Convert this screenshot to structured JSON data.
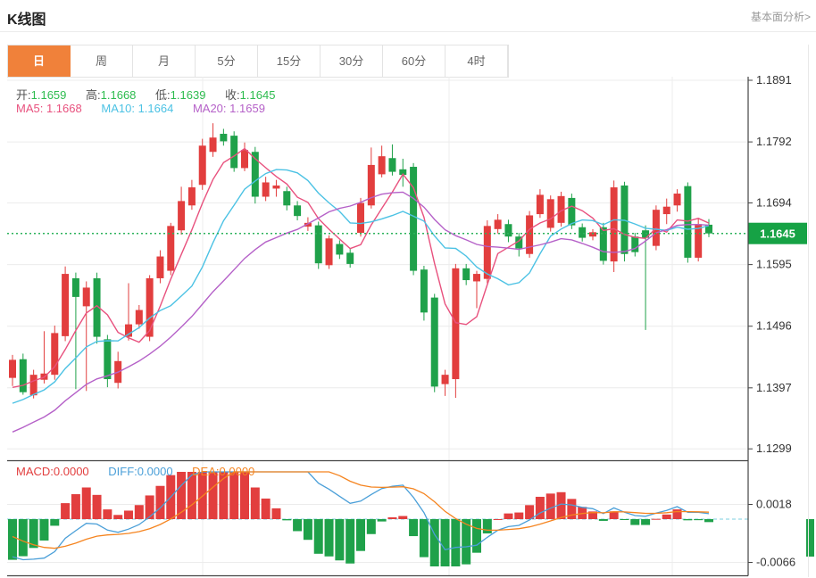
{
  "header": {
    "title": "K线图",
    "link_label": "基本面分析>"
  },
  "tabs": {
    "items": [
      "日",
      "周",
      "月",
      "5分",
      "15分",
      "30分",
      "60分",
      "4时"
    ],
    "selected_index": 0
  },
  "ohlc_legend": {
    "open_label": "开:",
    "open": "1.1659",
    "high_label": "高:",
    "high": "1.1668",
    "low_label": "低:",
    "low": "1.1639",
    "close_label": "收:",
    "close": "1.1645"
  },
  "ma_legend": {
    "ma5_label": "MA5:",
    "ma5": "1.1668",
    "ma10_label": "MA10:",
    "ma10": "1.1664",
    "ma20_label": "MA20:",
    "ma20": "1.1659"
  },
  "macd_legend": {
    "macd_label": "MACD:",
    "macd": "0.0000",
    "diff_label": "DIFF:",
    "diff": "0.0000",
    "dea_label": "DEA:",
    "dea": "0.0000"
  },
  "price_axis": {
    "ticks": [
      "1.1891",
      "1.1792",
      "1.1694",
      "1.1595",
      "1.1496",
      "1.1397",
      "1.1299"
    ],
    "current_price": "1.1645"
  },
  "macd_axis": {
    "ticks": [
      "0.0018",
      "-0.0066"
    ]
  },
  "colors": {
    "up": "#e23e3e",
    "down": "#1fa14a",
    "value_green": "#2ebc4f",
    "label_gray": "#555555",
    "ma5": "#e8517e",
    "ma10": "#4cc2e4",
    "ma20": "#b561c8",
    "macd_label": "#e23e3e",
    "diff": "#4a9fd8",
    "dea": "#f5841f",
    "tab_selected_bg": "#f0813a",
    "price_line": "#2db35c",
    "price_tag_bg": "#16a245",
    "axis_text": "#333333",
    "grid": "#ececec",
    "axis_line": "#444444",
    "zero_dash": "#7ecfe0"
  },
  "chart_data": {
    "type": "candlestick",
    "title": "K线图",
    "period_selected": "日",
    "price_range": [
      1.1299,
      1.1891
    ],
    "y_ticks": [
      1.1891,
      1.1792,
      1.1694,
      1.1595,
      1.1496,
      1.1397,
      1.1299
    ],
    "current_price": 1.1645,
    "overlays": [
      {
        "name": "MA5",
        "window": 5,
        "color": "#e8517e",
        "last_value": 1.1668
      },
      {
        "name": "MA10",
        "window": 10,
        "color": "#4cc2e4",
        "last_value": 1.1664
      },
      {
        "name": "MA20",
        "window": 20,
        "color": "#b561c8",
        "last_value": 1.1659
      }
    ],
    "last_candle": {
      "open": 1.1659,
      "high": 1.1668,
      "low": 1.1639,
      "close": 1.1645
    },
    "candles": [
      [
        1.1413,
        1.145,
        1.14,
        1.1442
      ],
      [
        1.1443,
        1.1452,
        1.1386,
        1.139
      ],
      [
        1.1385,
        1.1426,
        1.138,
        1.1418
      ],
      [
        1.141,
        1.1488,
        1.1404,
        1.142
      ],
      [
        1.1418,
        1.1497,
        1.141,
        1.1485
      ],
      [
        1.148,
        1.1592,
        1.1472,
        1.158
      ],
      [
        1.1573,
        1.1582,
        1.1395,
        1.1543
      ],
      [
        1.1528,
        1.1568,
        1.1392,
        1.1558
      ],
      [
        1.1573,
        1.1582,
        1.1468,
        1.1479
      ],
      [
        1.1475,
        1.1482,
        1.1398,
        1.1411
      ],
      [
        1.1405,
        1.1455,
        1.1396,
        1.144
      ],
      [
        1.1479,
        1.1565,
        1.1473,
        1.1499
      ],
      [
        1.1499,
        1.153,
        1.1492,
        1.1522
      ],
      [
        1.1479,
        1.1578,
        1.1472,
        1.1573
      ],
      [
        1.1573,
        1.1618,
        1.1565,
        1.1608
      ],
      [
        1.1585,
        1.1662,
        1.1578,
        1.1657
      ],
      [
        1.165,
        1.172,
        1.1643,
        1.1697
      ],
      [
        1.169,
        1.1731,
        1.1683,
        1.1719
      ],
      [
        1.1723,
        1.1797,
        1.1715,
        1.1786
      ],
      [
        1.1776,
        1.1822,
        1.1768,
        1.1799
      ],
      [
        1.1805,
        1.1813,
        1.1786,
        1.1793
      ],
      [
        1.1802,
        1.1809,
        1.1744,
        1.175
      ],
      [
        1.175,
        1.1791,
        1.1745,
        1.1779
      ],
      [
        1.1776,
        1.1784,
        1.1693,
        1.1704
      ],
      [
        1.1704,
        1.1736,
        1.1697,
        1.1727
      ],
      [
        1.1717,
        1.1731,
        1.1704,
        1.1722
      ],
      [
        1.1713,
        1.172,
        1.1682,
        1.169
      ],
      [
        1.169,
        1.1697,
        1.1666,
        1.1673
      ],
      [
        1.1656,
        1.1671,
        1.1649,
        1.1662
      ],
      [
        1.1658,
        1.1664,
        1.1588,
        1.1597
      ],
      [
        1.1594,
        1.1642,
        1.1588,
        1.1637
      ],
      [
        1.1628,
        1.1634,
        1.1604,
        1.1611
      ],
      [
        1.1614,
        1.162,
        1.159,
        1.1596
      ],
      [
        1.1646,
        1.1702,
        1.164,
        1.1694
      ],
      [
        1.169,
        1.1783,
        1.1685,
        1.1755
      ],
      [
        1.174,
        1.1786,
        1.1735,
        1.1769
      ],
      [
        1.1766,
        1.1788,
        1.1738,
        1.1744
      ],
      [
        1.1748,
        1.1765,
        1.172,
        1.1739
      ],
      [
        1.1752,
        1.1758,
        1.1578,
        1.1585
      ],
      [
        1.1587,
        1.1593,
        1.1505,
        1.1518
      ],
      [
        1.1542,
        1.1548,
        1.139,
        1.1399
      ],
      [
        1.1403,
        1.1426,
        1.1384,
        1.1418
      ],
      [
        1.1411,
        1.1596,
        1.1381,
        1.1589
      ],
      [
        1.1589,
        1.1596,
        1.1562,
        1.157
      ],
      [
        1.1568,
        1.1585,
        1.1525,
        1.158
      ],
      [
        1.1572,
        1.1666,
        1.1565,
        1.1657
      ],
      [
        1.1652,
        1.1676,
        1.1645,
        1.1667
      ],
      [
        1.166,
        1.1667,
        1.1631,
        1.164
      ],
      [
        1.164,
        1.1646,
        1.1608,
        1.1621
      ],
      [
        1.1612,
        1.1681,
        1.1606,
        1.1674
      ],
      [
        1.1676,
        1.1716,
        1.167,
        1.1707
      ],
      [
        1.1654,
        1.1706,
        1.1648,
        1.17
      ],
      [
        1.1662,
        1.1712,
        1.1656,
        1.1705
      ],
      [
        1.1702,
        1.1709,
        1.1652,
        1.1658
      ],
      [
        1.1655,
        1.1661,
        1.1632,
        1.1638
      ],
      [
        1.164,
        1.1652,
        1.1634,
        1.1647
      ],
      [
        1.1655,
        1.1662,
        1.1595,
        1.1601
      ],
      [
        1.16,
        1.173,
        1.1583,
        1.1719
      ],
      [
        1.1722,
        1.1728,
        1.16,
        1.1612
      ],
      [
        1.164,
        1.1646,
        1.1608,
        1.1615
      ],
      [
        1.165,
        1.1658,
        1.149,
        1.1638
      ],
      [
        1.1625,
        1.169,
        1.1618,
        1.1683
      ],
      [
        1.1676,
        1.1701,
        1.166,
        1.1688
      ],
      [
        1.169,
        1.1716,
        1.168,
        1.1709
      ],
      [
        1.1721,
        1.1727,
        1.1598,
        1.1606
      ],
      [
        1.1606,
        1.1669,
        1.16,
        1.166
      ],
      [
        1.1659,
        1.1668,
        1.1639,
        1.1645
      ]
    ],
    "sub_chart": {
      "type": "macd",
      "legend": [
        "MACD:0.0000",
        "DIFF:0.0000",
        "DEA:0.0000"
      ],
      "ticks": [
        0.0018,
        -0.0066
      ],
      "zero_line": 0,
      "bar_positive_color": "#e23e3e",
      "bar_negative_color": "#1fa14a"
    }
  }
}
